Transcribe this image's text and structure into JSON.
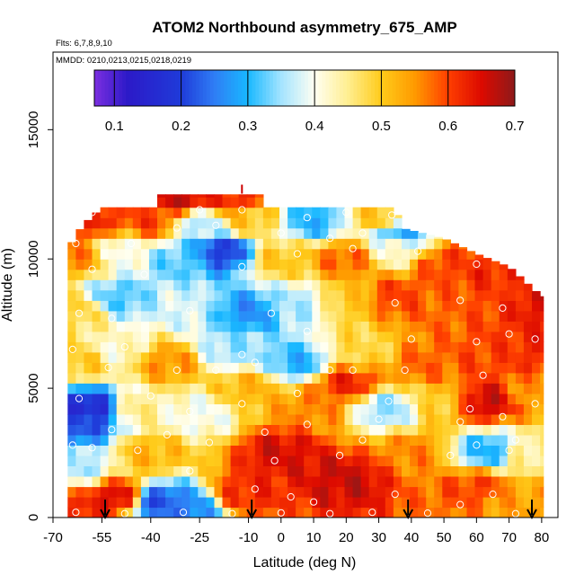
{
  "chart_data": {
    "type": "heatmap",
    "title": "ATOM2 Northbound asymmetry_675_AMP",
    "flights_note": "Flts: 6,7,8,9,10",
    "dates_note": "MMDD: 0210,0213,0215,0218,0219",
    "xlabel": "Latitude (deg N)",
    "ylabel": "Altitude (m)",
    "xlim": [
      -70,
      85
    ],
    "ylim": [
      0,
      18000
    ],
    "x_ticks": [
      -70,
      -55,
      -40,
      -25,
      -10,
      0,
      10,
      20,
      30,
      40,
      50,
      60,
      70,
      80
    ],
    "y_ticks": [
      0,
      5000,
      10000,
      15000
    ],
    "colorbar": {
      "min": 0.07,
      "max": 0.7,
      "ticks": [
        0.1,
        0.2,
        0.3,
        0.4,
        0.5,
        0.6,
        0.7
      ],
      "colors": [
        "#7b2fe0",
        "#3a16c8",
        "#1f1fc0",
        "#1c3ee0",
        "#3f7ff8",
        "#2aa8ff",
        "#20c8ff",
        "#a8e6ff",
        "#fffff0",
        "#ffee99",
        "#ffd21e",
        "#ffa500",
        "#ff6a00",
        "#f01f00",
        "#c80a00",
        "#8e1a1a"
      ],
      "frame_color": "#000000"
    },
    "colormap_stops": [
      [
        0.07,
        "#7b2fe0"
      ],
      [
        0.12,
        "#2c1ac8"
      ],
      [
        0.2,
        "#1f3bd9"
      ],
      [
        0.25,
        "#2f7ef5"
      ],
      [
        0.3,
        "#18b8ff"
      ],
      [
        0.35,
        "#a4e4ff"
      ],
      [
        0.4,
        "#fffff2"
      ],
      [
        0.45,
        "#ffee90"
      ],
      [
        0.5,
        "#ffcb1a"
      ],
      [
        0.55,
        "#ff9a00"
      ],
      [
        0.6,
        "#ff3f00"
      ],
      [
        0.65,
        "#dc0a00"
      ],
      [
        0.7,
        "#8e1a1a"
      ]
    ],
    "data_extent": {
      "lat_min": -65.5,
      "lat_max": 80.5,
      "alt_max": 12500,
      "top_edge_profile": [
        [
          -65.5,
          10400
        ],
        [
          -61,
          11300
        ],
        [
          -55,
          12000
        ],
        [
          -38,
          12000
        ],
        [
          -37,
          12500
        ],
        [
          -6,
          12500
        ],
        [
          -5,
          12000
        ],
        [
          35,
          12000
        ],
        [
          37,
          11200
        ],
        [
          50,
          10800
        ],
        [
          60,
          10200
        ],
        [
          70,
          9700
        ],
        [
          80.5,
          8500
        ]
      ]
    },
    "field_anchors": [
      {
        "lat": -62,
        "alt": 200,
        "value": 0.62
      },
      {
        "lat": -50,
        "alt": 800,
        "value": 0.65
      },
      {
        "lat": -38,
        "alt": 600,
        "value": 0.22
      },
      {
        "lat": -30,
        "alt": 300,
        "value": 0.25
      },
      {
        "lat": -10,
        "alt": 1000,
        "value": 0.62
      },
      {
        "lat": 20,
        "alt": 1500,
        "value": 0.66
      },
      {
        "lat": 60,
        "alt": 1200,
        "value": 0.6
      },
      {
        "lat": 72,
        "alt": 600,
        "value": 0.54
      },
      {
        "lat": -62,
        "alt": 2000,
        "value": 0.36
      },
      {
        "lat": -40,
        "alt": 2500,
        "value": 0.52
      },
      {
        "lat": 0,
        "alt": 2500,
        "value": 0.65
      },
      {
        "lat": 40,
        "alt": 2500,
        "value": 0.56
      },
      {
        "lat": 64,
        "alt": 2600,
        "value": 0.3
      },
      {
        "lat": 75,
        "alt": 2500,
        "value": 0.45
      },
      {
        "lat": -62,
        "alt": 3700,
        "value": 0.22
      },
      {
        "lat": -58,
        "alt": 4200,
        "value": 0.16
      },
      {
        "lat": -45,
        "alt": 4200,
        "value": 0.45
      },
      {
        "lat": -25,
        "alt": 4000,
        "value": 0.4
      },
      {
        "lat": -10,
        "alt": 5000,
        "value": 0.52
      },
      {
        "lat": 10,
        "alt": 4300,
        "value": 0.56
      },
      {
        "lat": 20,
        "alt": 5200,
        "value": 0.62
      },
      {
        "lat": 32,
        "alt": 4200,
        "value": 0.35
      },
      {
        "lat": 50,
        "alt": 4500,
        "value": 0.5
      },
      {
        "lat": 62,
        "alt": 4500,
        "value": 0.66
      },
      {
        "lat": 78,
        "alt": 4800,
        "value": 0.55
      },
      {
        "lat": -62,
        "alt": 6000,
        "value": 0.5
      },
      {
        "lat": -50,
        "alt": 6500,
        "value": 0.42
      },
      {
        "lat": -35,
        "alt": 6000,
        "value": 0.55
      },
      {
        "lat": -15,
        "alt": 6500,
        "value": 0.35
      },
      {
        "lat": 5,
        "alt": 6000,
        "value": 0.3
      },
      {
        "lat": 25,
        "alt": 6500,
        "value": 0.48
      },
      {
        "lat": 45,
        "alt": 6000,
        "value": 0.58
      },
      {
        "lat": 65,
        "alt": 6200,
        "value": 0.6
      },
      {
        "lat": 78,
        "alt": 6500,
        "value": 0.62
      },
      {
        "lat": -62,
        "alt": 8000,
        "value": 0.48
      },
      {
        "lat": -50,
        "alt": 8500,
        "value": 0.32
      },
      {
        "lat": -30,
        "alt": 8200,
        "value": 0.38
      },
      {
        "lat": -10,
        "alt": 8000,
        "value": 0.27
      },
      {
        "lat": 5,
        "alt": 8300,
        "value": 0.36
      },
      {
        "lat": 20,
        "alt": 8500,
        "value": 0.5
      },
      {
        "lat": 35,
        "alt": 8600,
        "value": 0.6
      },
      {
        "lat": 50,
        "alt": 8200,
        "value": 0.58
      },
      {
        "lat": 65,
        "alt": 8500,
        "value": 0.6
      },
      {
        "lat": 78,
        "alt": 8300,
        "value": 0.64
      },
      {
        "lat": -62,
        "alt": 10200,
        "value": 0.56
      },
      {
        "lat": -50,
        "alt": 10300,
        "value": 0.4
      },
      {
        "lat": -30,
        "alt": 10000,
        "value": 0.32
      },
      {
        "lat": -18,
        "alt": 10300,
        "value": 0.2
      },
      {
        "lat": 0,
        "alt": 10000,
        "value": 0.5
      },
      {
        "lat": 20,
        "alt": 10000,
        "value": 0.58
      },
      {
        "lat": 35,
        "alt": 10300,
        "value": 0.42
      },
      {
        "lat": 50,
        "alt": 9800,
        "value": 0.6
      },
      {
        "lat": 65,
        "alt": 9500,
        "value": 0.62
      },
      {
        "lat": -58,
        "alt": 11500,
        "value": 0.62
      },
      {
        "lat": -40,
        "alt": 11500,
        "value": 0.6
      },
      {
        "lat": -25,
        "alt": 11400,
        "value": 0.36
      },
      {
        "lat": -10,
        "alt": 11500,
        "value": 0.5
      },
      {
        "lat": 10,
        "alt": 11500,
        "value": 0.3
      },
      {
        "lat": 30,
        "alt": 11600,
        "value": 0.5
      },
      {
        "lat": 36,
        "alt": 11000,
        "value": 0.3
      },
      {
        "lat": -30,
        "alt": 12300,
        "value": 0.66
      },
      {
        "lat": -15,
        "alt": 12300,
        "value": 0.62
      }
    ],
    "sample_points": [
      [
        -63,
        200
      ],
      [
        -48,
        150
      ],
      [
        -30,
        200
      ],
      [
        -15,
        150
      ],
      [
        0,
        180
      ],
      [
        15,
        150
      ],
      [
        28,
        200
      ],
      [
        45,
        170
      ],
      [
        72,
        150
      ],
      [
        -8,
        1100
      ],
      [
        3,
        800
      ],
      [
        10,
        600
      ],
      [
        35,
        900
      ],
      [
        55,
        500
      ],
      [
        65,
        900
      ],
      [
        -28,
        1800
      ],
      [
        -2,
        2200
      ],
      [
        18,
        2400
      ],
      [
        52,
        2400
      ],
      [
        70,
        2600
      ],
      [
        -64,
        2800
      ],
      [
        -58,
        2700
      ],
      [
        -44,
        2600
      ],
      [
        -22,
        2900
      ],
      [
        25,
        3000
      ],
      [
        60,
        2800
      ],
      [
        72,
        3000
      ],
      [
        -52,
        3400
      ],
      [
        -35,
        3200
      ],
      [
        -5,
        3300
      ],
      [
        8,
        3600
      ],
      [
        30,
        3800
      ],
      [
        55,
        3700
      ],
      [
        68,
        3900
      ],
      [
        -62,
        4600
      ],
      [
        -40,
        4700
      ],
      [
        -28,
        4100
      ],
      [
        -12,
        4400
      ],
      [
        5,
        4800
      ],
      [
        33,
        4500
      ],
      [
        58,
        4200
      ],
      [
        78,
        4400
      ],
      [
        -53,
        5800
      ],
      [
        -32,
        5700
      ],
      [
        -20,
        5700
      ],
      [
        -8,
        6000
      ],
      [
        15,
        5700
      ],
      [
        22,
        5700
      ],
      [
        38,
        5700
      ],
      [
        62,
        5500
      ],
      [
        -64,
        6500
      ],
      [
        -48,
        6600
      ],
      [
        -12,
        6300
      ],
      [
        8,
        7200
      ],
      [
        40,
        6900
      ],
      [
        60,
        6800
      ],
      [
        70,
        7100
      ],
      [
        78,
        6900
      ],
      [
        -62,
        7900
      ],
      [
        -52,
        7700
      ],
      [
        -28,
        8000
      ],
      [
        -3,
        7900
      ],
      [
        35,
        8300
      ],
      [
        55,
        8400
      ],
      [
        68,
        8100
      ],
      [
        -58,
        9600
      ],
      [
        -42,
        9400
      ],
      [
        -12,
        9700
      ],
      [
        5,
        10200
      ],
      [
        22,
        10400
      ],
      [
        42,
        10300
      ],
      [
        60,
        9800
      ],
      [
        75,
        9700
      ],
      [
        -63,
        10600
      ],
      [
        -46,
        10600
      ],
      [
        -32,
        11200
      ],
      [
        -20,
        11300
      ],
      [
        0,
        11000
      ],
      [
        15,
        10800
      ],
      [
        25,
        11000
      ],
      [
        34,
        11700
      ],
      [
        -58,
        11800
      ],
      [
        -25,
        11900
      ],
      [
        -12,
        11900
      ],
      [
        8,
        11600
      ],
      [
        20,
        11800
      ]
    ],
    "highlight_cross": {
      "lat": -12,
      "alt": 12700,
      "color": "#cc0000"
    },
    "latitude_markers": [
      -54,
      -9,
      39,
      77
    ]
  }
}
